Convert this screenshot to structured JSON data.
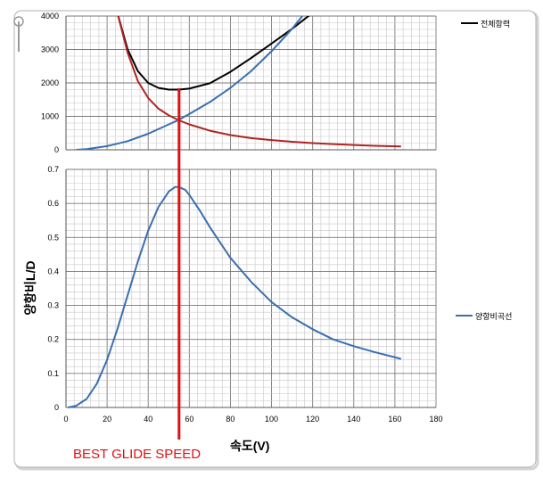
{
  "chart_data": [
    {
      "type": "line",
      "title": "",
      "xlabel": "",
      "ylabel": "",
      "xlim": [
        0,
        180
      ],
      "ylim": [
        0,
        4000
      ],
      "x_ticks": [],
      "y_ticks": [
        "0",
        "1000",
        "2000",
        "3000",
        "4000"
      ],
      "grid": true,
      "legend_position": "right",
      "series": [
        {
          "name": "전체항력",
          "color": "#000000",
          "x": [
            25,
            30,
            35,
            40,
            45,
            50,
            55,
            60,
            70,
            80,
            90,
            100,
            110,
            120
          ],
          "y": [
            4100,
            3000,
            2350,
            2000,
            1850,
            1800,
            1800,
            1830,
            1990,
            2330,
            2740,
            3180,
            3620,
            4100
          ]
        },
        {
          "name": "",
          "color": "#b22222",
          "x": [
            25,
            30,
            35,
            40,
            45,
            50,
            55,
            60,
            70,
            80,
            90,
            100,
            110,
            120,
            130,
            140,
            150,
            163
          ],
          "y": [
            4100,
            2900,
            2050,
            1550,
            1230,
            1030,
            880,
            760,
            570,
            440,
            350,
            290,
            240,
            200,
            170,
            145,
            120,
            100
          ]
        },
        {
          "name": "",
          "color": "#3a6fb0",
          "x": [
            5,
            10,
            20,
            30,
            40,
            50,
            55,
            60,
            70,
            80,
            90,
            100,
            110,
            115
          ],
          "y": [
            0,
            20,
            110,
            260,
            480,
            760,
            900,
            1070,
            1430,
            1850,
            2350,
            2950,
            3620,
            4000
          ]
        }
      ]
    },
    {
      "type": "line",
      "title": "",
      "xlabel": "속도(V)",
      "ylabel": "양항비L/D",
      "xlim": [
        0,
        180
      ],
      "ylim": [
        0,
        0.7
      ],
      "x_ticks": [
        "0",
        "20",
        "40",
        "60",
        "80",
        "100",
        "120",
        "140",
        "160",
        "180"
      ],
      "y_ticks": [
        "0",
        "0.1",
        "0.2",
        "0.3",
        "0.4",
        "0.5",
        "0.6",
        "0.7"
      ],
      "grid": true,
      "legend_position": "right",
      "series": [
        {
          "name": "양항비곡선",
          "color": "#3a6fb0",
          "x": [
            1,
            5,
            10,
            15,
            20,
            25,
            30,
            35,
            40,
            45,
            50,
            53,
            55,
            58,
            60,
            65,
            70,
            80,
            90,
            100,
            110,
            120,
            130,
            140,
            150,
            163
          ],
          "y": [
            0,
            0.005,
            0.025,
            0.07,
            0.14,
            0.23,
            0.33,
            0.43,
            0.52,
            0.59,
            0.635,
            0.648,
            0.648,
            0.64,
            0.625,
            0.58,
            0.53,
            0.44,
            0.37,
            0.31,
            0.265,
            0.23,
            0.2,
            0.18,
            0.163,
            0.143
          ]
        }
      ]
    }
  ],
  "annotation": {
    "label": "BEST GLIDE SPEED",
    "x_value": 55,
    "color": "#e01010"
  }
}
